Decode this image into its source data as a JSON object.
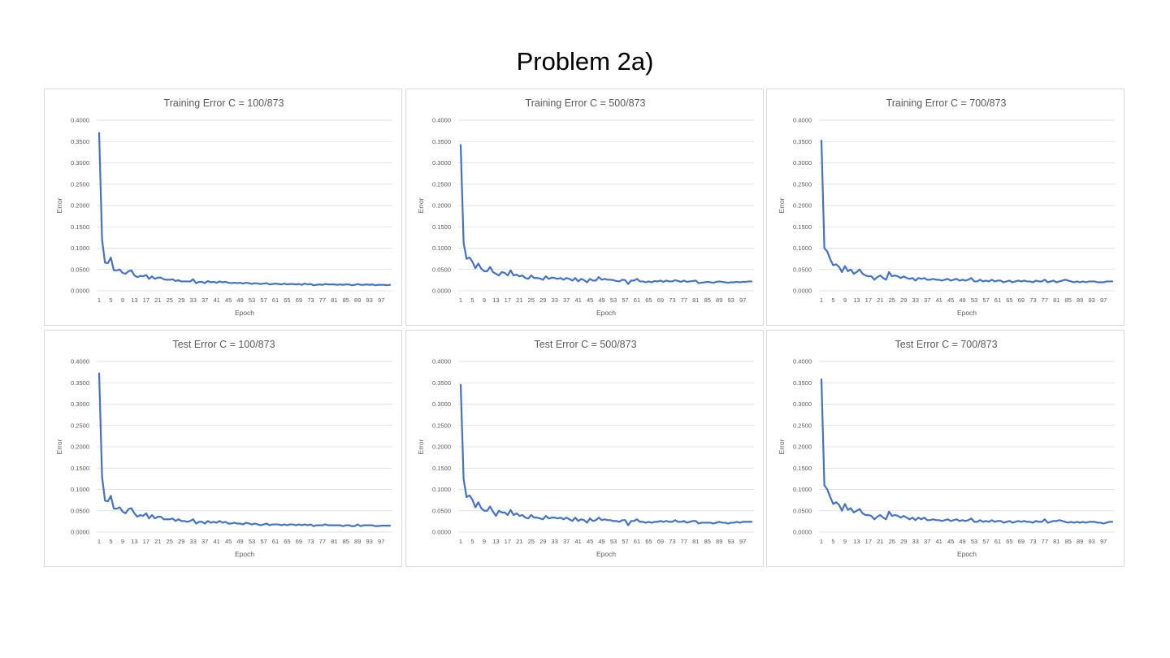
{
  "slide": {
    "title": "Problem 2a)"
  },
  "colors": {
    "series": "#4472c4",
    "grid": "#d9d9d9",
    "text": "#595959",
    "border": "#d9d9d9"
  },
  "chart_data": [
    {
      "type": "line",
      "title": "Training Error C = 100/873",
      "xlabel": "Epoch",
      "ylabel": "Error",
      "ylim": [
        0,
        0.4
      ],
      "yticks": [
        "0.4000",
        "0.3500",
        "0.3000",
        "0.2500",
        "0.2000",
        "0.1500",
        "0.1000",
        "0.0500",
        "0.0000"
      ],
      "xticks": [
        "1",
        "5",
        "9",
        "13",
        "17",
        "21",
        "25",
        "29",
        "33",
        "37",
        "41",
        "45",
        "49",
        "53",
        "57",
        "61",
        "65",
        "69",
        "73",
        "77",
        "81",
        "85",
        "89",
        "93",
        "97"
      ],
      "grid": true,
      "x_start": 1,
      "values": [
        0.37,
        0.12,
        0.066,
        0.065,
        0.078,
        0.048,
        0.048,
        0.05,
        0.042,
        0.04,
        0.046,
        0.048,
        0.036,
        0.032,
        0.035,
        0.034,
        0.037,
        0.028,
        0.034,
        0.028,
        0.031,
        0.031,
        0.027,
        0.026,
        0.026,
        0.027,
        0.023,
        0.025,
        0.022,
        0.022,
        0.022,
        0.022,
        0.027,
        0.018,
        0.021,
        0.021,
        0.018,
        0.023,
        0.02,
        0.021,
        0.019,
        0.022,
        0.02,
        0.021,
        0.019,
        0.018,
        0.019,
        0.018,
        0.019,
        0.017,
        0.019,
        0.018,
        0.016,
        0.018,
        0.017,
        0.016,
        0.017,
        0.018,
        0.015,
        0.016,
        0.017,
        0.016,
        0.015,
        0.017,
        0.015,
        0.016,
        0.016,
        0.015,
        0.016,
        0.014,
        0.017,
        0.015,
        0.016,
        0.013,
        0.014,
        0.015,
        0.014,
        0.016,
        0.015,
        0.015,
        0.015,
        0.014,
        0.015,
        0.014,
        0.015,
        0.015,
        0.013,
        0.014,
        0.016,
        0.014,
        0.014,
        0.015,
        0.014,
        0.015,
        0.013,
        0.014,
        0.014,
        0.014,
        0.013,
        0.014
      ]
    },
    {
      "type": "line",
      "title": "Training Error C = 500/873",
      "xlabel": "Epoch",
      "ylabel": "Error",
      "ylim": [
        0,
        0.4
      ],
      "yticks": [
        "0.4000",
        "0.3500",
        "0.3000",
        "0.2500",
        "0.2000",
        "0.1500",
        "0.1000",
        "0.0500",
        "0.0000"
      ],
      "xticks": [
        "1",
        "5",
        "9",
        "13",
        "17",
        "21",
        "25",
        "29",
        "33",
        "37",
        "41",
        "45",
        "49",
        "53",
        "57",
        "61",
        "65",
        "69",
        "73",
        "77",
        "81",
        "85",
        "89",
        "93",
        "97"
      ],
      "grid": true,
      "x_start": 1,
      "values": [
        0.342,
        0.112,
        0.075,
        0.078,
        0.068,
        0.053,
        0.064,
        0.052,
        0.046,
        0.046,
        0.056,
        0.044,
        0.04,
        0.036,
        0.044,
        0.042,
        0.036,
        0.048,
        0.036,
        0.038,
        0.034,
        0.036,
        0.03,
        0.028,
        0.036,
        0.03,
        0.03,
        0.029,
        0.026,
        0.034,
        0.028,
        0.031,
        0.03,
        0.028,
        0.03,
        0.026,
        0.03,
        0.028,
        0.024,
        0.03,
        0.022,
        0.028,
        0.025,
        0.02,
        0.028,
        0.024,
        0.024,
        0.032,
        0.026,
        0.028,
        0.026,
        0.026,
        0.025,
        0.023,
        0.022,
        0.026,
        0.025,
        0.016,
        0.024,
        0.024,
        0.028,
        0.022,
        0.022,
        0.02,
        0.022,
        0.02,
        0.023,
        0.022,
        0.024,
        0.021,
        0.024,
        0.022,
        0.022,
        0.025,
        0.023,
        0.021,
        0.024,
        0.021,
        0.022,
        0.023,
        0.024,
        0.018,
        0.019,
        0.02,
        0.021,
        0.02,
        0.019,
        0.021,
        0.022,
        0.021,
        0.02,
        0.019,
        0.02,
        0.02,
        0.021,
        0.02,
        0.021,
        0.021,
        0.022,
        0.022
      ]
    },
    {
      "type": "line",
      "title": "Training Error C = 700/873",
      "xlabel": "Epoch",
      "ylabel": "Error",
      "ylim": [
        0,
        0.4
      ],
      "yticks": [
        "0.4000",
        "0.3500",
        "0.3000",
        "0.2500",
        "0.2000",
        "0.1500",
        "0.1000",
        "0.0500",
        "0.0000"
      ],
      "xticks": [
        "1",
        "5",
        "9",
        "13",
        "17",
        "21",
        "25",
        "29",
        "33",
        "37",
        "41",
        "45",
        "49",
        "53",
        "57",
        "61",
        "65",
        "69",
        "73",
        "77",
        "81",
        "85",
        "89",
        "93",
        "97"
      ],
      "grid": true,
      "x_start": 1,
      "values": [
        0.352,
        0.1,
        0.092,
        0.074,
        0.06,
        0.062,
        0.056,
        0.044,
        0.058,
        0.046,
        0.05,
        0.04,
        0.044,
        0.05,
        0.04,
        0.036,
        0.034,
        0.034,
        0.026,
        0.032,
        0.036,
        0.03,
        0.026,
        0.044,
        0.034,
        0.036,
        0.034,
        0.03,
        0.034,
        0.03,
        0.028,
        0.03,
        0.024,
        0.03,
        0.028,
        0.03,
        0.026,
        0.026,
        0.028,
        0.026,
        0.026,
        0.024,
        0.026,
        0.028,
        0.024,
        0.026,
        0.028,
        0.024,
        0.026,
        0.024,
        0.026,
        0.03,
        0.022,
        0.022,
        0.026,
        0.022,
        0.024,
        0.022,
        0.026,
        0.022,
        0.024,
        0.024,
        0.02,
        0.022,
        0.024,
        0.02,
        0.022,
        0.024,
        0.022,
        0.024,
        0.022,
        0.022,
        0.02,
        0.024,
        0.022,
        0.022,
        0.026,
        0.02,
        0.022,
        0.024,
        0.02,
        0.022,
        0.024,
        0.026,
        0.024,
        0.022,
        0.02,
        0.022,
        0.02,
        0.022,
        0.02,
        0.022,
        0.022,
        0.022,
        0.02,
        0.02,
        0.02,
        0.022,
        0.022,
        0.022
      ]
    },
    {
      "type": "line",
      "title": "Test Error C = 100/873",
      "xlabel": "Epoch",
      "ylabel": "Error",
      "ylim": [
        0,
        0.4
      ],
      "yticks": [
        "0.4000",
        "0.3500",
        "0.3000",
        "0.2500",
        "0.2000",
        "0.1500",
        "0.1000",
        "0.0500",
        "0.0000"
      ],
      "xticks": [
        "1",
        "5",
        "9",
        "13",
        "17",
        "21",
        "25",
        "29",
        "33",
        "37",
        "41",
        "45",
        "49",
        "53",
        "57",
        "61",
        "65",
        "69",
        "73",
        "77",
        "81",
        "85",
        "89",
        "93",
        "97"
      ],
      "grid": true,
      "x_start": 1,
      "values": [
        0.372,
        0.13,
        0.074,
        0.072,
        0.085,
        0.055,
        0.055,
        0.058,
        0.048,
        0.044,
        0.054,
        0.056,
        0.044,
        0.036,
        0.04,
        0.038,
        0.044,
        0.032,
        0.04,
        0.032,
        0.036,
        0.036,
        0.03,
        0.03,
        0.03,
        0.032,
        0.026,
        0.03,
        0.026,
        0.026,
        0.024,
        0.026,
        0.03,
        0.02,
        0.024,
        0.024,
        0.02,
        0.026,
        0.022,
        0.024,
        0.022,
        0.026,
        0.022,
        0.024,
        0.02,
        0.02,
        0.022,
        0.02,
        0.02,
        0.018,
        0.022,
        0.02,
        0.018,
        0.02,
        0.018,
        0.016,
        0.018,
        0.02,
        0.016,
        0.018,
        0.018,
        0.018,
        0.016,
        0.018,
        0.016,
        0.018,
        0.018,
        0.016,
        0.018,
        0.016,
        0.018,
        0.016,
        0.018,
        0.014,
        0.016,
        0.016,
        0.016,
        0.018,
        0.016,
        0.016,
        0.016,
        0.016,
        0.016,
        0.014,
        0.016,
        0.016,
        0.014,
        0.014,
        0.018,
        0.014,
        0.016,
        0.016,
        0.016,
        0.016,
        0.014,
        0.014,
        0.015,
        0.015,
        0.015,
        0.015
      ]
    },
    {
      "type": "line",
      "title": "Test Error C = 500/873",
      "xlabel": "Epoch",
      "ylabel": "Error",
      "ylim": [
        0,
        0.4
      ],
      "yticks": [
        "0.4000",
        "0.3500",
        "0.3000",
        "0.2500",
        "0.2000",
        "0.1500",
        "0.1000",
        "0.0500",
        "0.0000"
      ],
      "xticks": [
        "1",
        "5",
        "9",
        "13",
        "17",
        "21",
        "25",
        "29",
        "33",
        "37",
        "41",
        "45",
        "49",
        "53",
        "57",
        "61",
        "65",
        "69",
        "73",
        "77",
        "81",
        "85",
        "89",
        "93",
        "97"
      ],
      "grid": true,
      "x_start": 1,
      "values": [
        0.345,
        0.124,
        0.082,
        0.086,
        0.076,
        0.058,
        0.07,
        0.056,
        0.05,
        0.05,
        0.06,
        0.048,
        0.038,
        0.05,
        0.046,
        0.046,
        0.04,
        0.052,
        0.04,
        0.044,
        0.038,
        0.04,
        0.034,
        0.032,
        0.04,
        0.034,
        0.034,
        0.032,
        0.03,
        0.038,
        0.032,
        0.034,
        0.034,
        0.032,
        0.034,
        0.03,
        0.034,
        0.03,
        0.026,
        0.034,
        0.026,
        0.03,
        0.028,
        0.022,
        0.032,
        0.026,
        0.028,
        0.034,
        0.028,
        0.03,
        0.028,
        0.028,
        0.026,
        0.026,
        0.024,
        0.028,
        0.028,
        0.016,
        0.026,
        0.026,
        0.03,
        0.024,
        0.024,
        0.022,
        0.024,
        0.022,
        0.024,
        0.024,
        0.026,
        0.024,
        0.026,
        0.024,
        0.024,
        0.028,
        0.024,
        0.024,
        0.026,
        0.022,
        0.024,
        0.026,
        0.026,
        0.02,
        0.022,
        0.022,
        0.022,
        0.022,
        0.02,
        0.022,
        0.024,
        0.022,
        0.022,
        0.02,
        0.022,
        0.022,
        0.024,
        0.022,
        0.024,
        0.024,
        0.024,
        0.024
      ]
    },
    {
      "type": "line",
      "title": "Test Error C = 700/873",
      "xlabel": "Epoch",
      "ylabel": "Error",
      "ylim": [
        0,
        0.4
      ],
      "yticks": [
        "0.4000",
        "0.3500",
        "0.3000",
        "0.2500",
        "0.2000",
        "0.1500",
        "0.1000",
        "0.0500",
        "0.0000"
      ],
      "xticks": [
        "1",
        "5",
        "9",
        "13",
        "17",
        "21",
        "25",
        "29",
        "33",
        "37",
        "41",
        "45",
        "49",
        "53",
        "57",
        "61",
        "65",
        "69",
        "73",
        "77",
        "81",
        "85",
        "89",
        "93",
        "97"
      ],
      "grid": true,
      "x_start": 1,
      "values": [
        0.358,
        0.11,
        0.1,
        0.082,
        0.066,
        0.07,
        0.064,
        0.05,
        0.066,
        0.052,
        0.056,
        0.046,
        0.05,
        0.054,
        0.044,
        0.04,
        0.04,
        0.038,
        0.03,
        0.036,
        0.04,
        0.034,
        0.03,
        0.048,
        0.038,
        0.04,
        0.038,
        0.034,
        0.038,
        0.034,
        0.03,
        0.034,
        0.028,
        0.034,
        0.03,
        0.034,
        0.028,
        0.028,
        0.03,
        0.028,
        0.028,
        0.026,
        0.028,
        0.03,
        0.026,
        0.028,
        0.03,
        0.026,
        0.028,
        0.026,
        0.028,
        0.032,
        0.024,
        0.024,
        0.028,
        0.024,
        0.026,
        0.024,
        0.028,
        0.024,
        0.026,
        0.026,
        0.022,
        0.024,
        0.026,
        0.022,
        0.024,
        0.026,
        0.024,
        0.026,
        0.024,
        0.024,
        0.022,
        0.026,
        0.024,
        0.024,
        0.03,
        0.022,
        0.024,
        0.026,
        0.026,
        0.028,
        0.026,
        0.024,
        0.022,
        0.024,
        0.022,
        0.024,
        0.022,
        0.024,
        0.022,
        0.024,
        0.024,
        0.024,
        0.022,
        0.022,
        0.02,
        0.022,
        0.024,
        0.024
      ]
    }
  ]
}
